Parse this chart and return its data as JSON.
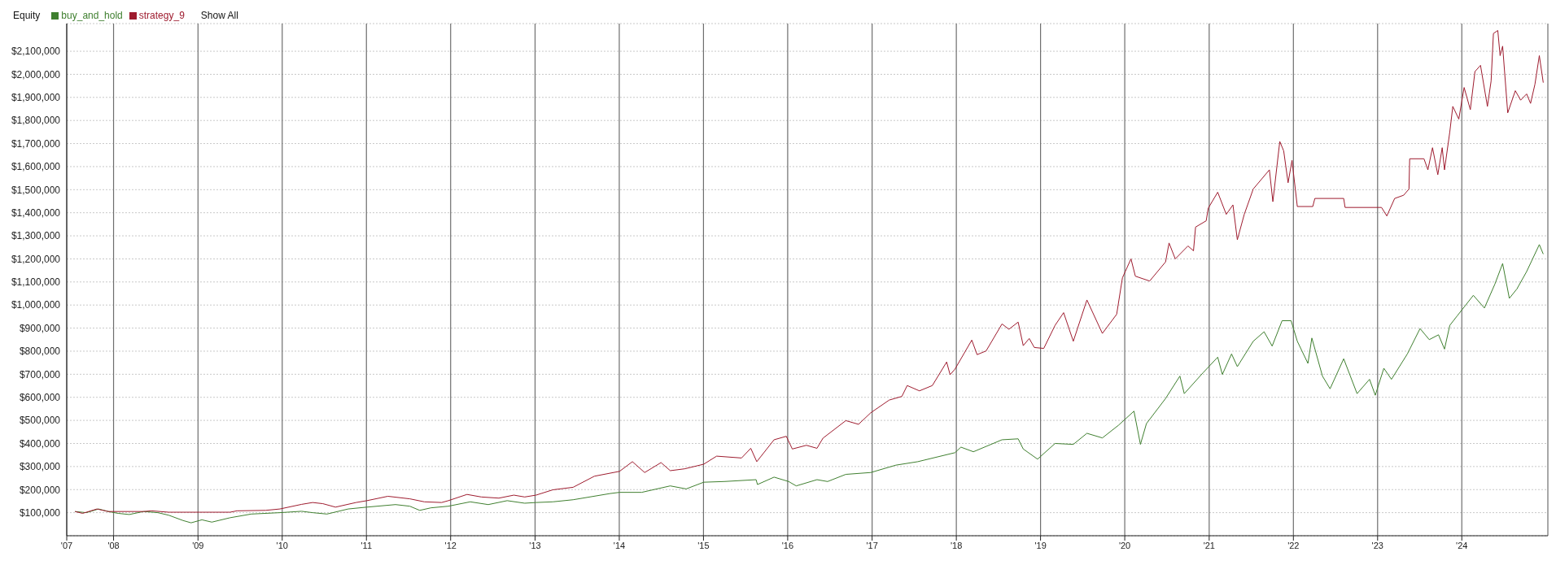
{
  "chart_data": {
    "type": "line",
    "title": "Equity",
    "legend": "top left",
    "grid": true,
    "marker": "none",
    "line_style": "solid",
    "annotations": [
      "Show All"
    ],
    "xlim": [
      "2007-06-12",
      "2025-01-08"
    ],
    "xticks": [
      {
        "value": "2007-06-12",
        "label": "'07"
      },
      {
        "value": "2008-01-01",
        "label": "'08"
      },
      {
        "value": "2009-01-01",
        "label": "'09"
      },
      {
        "value": "2010-01-01",
        "label": "'10"
      },
      {
        "value": "2011-01-01",
        "label": "'11"
      },
      {
        "value": "2012-01-01",
        "label": "'12"
      },
      {
        "value": "2013-01-01",
        "label": "'13"
      },
      {
        "value": "2014-01-01",
        "label": "'14"
      },
      {
        "value": "2015-01-01",
        "label": "'15"
      },
      {
        "value": "2016-01-01",
        "label": "'16"
      },
      {
        "value": "2017-01-01",
        "label": "'17"
      },
      {
        "value": "2018-01-01",
        "label": "'18"
      },
      {
        "value": "2019-01-01",
        "label": "'19"
      },
      {
        "value": "2020-01-01",
        "label": "'20"
      },
      {
        "value": "2021-01-01",
        "label": "'21"
      },
      {
        "value": "2022-01-01",
        "label": "'22"
      },
      {
        "value": "2023-01-01",
        "label": "'23"
      },
      {
        "value": "2024-01-01",
        "label": "'24"
      }
    ],
    "ylim": [
      0,
      2220000
    ],
    "yticks": [
      {
        "value": 100000,
        "label": "$100,000"
      },
      {
        "value": 200000,
        "label": "$200,000"
      },
      {
        "value": 300000,
        "label": "$300,000"
      },
      {
        "value": 400000,
        "label": "$400,000"
      },
      {
        "value": 500000,
        "label": "$500,000"
      },
      {
        "value": 600000,
        "label": "$600,000"
      },
      {
        "value": 700000,
        "label": "$700,000"
      },
      {
        "value": 800000,
        "label": "$800,000"
      },
      {
        "value": 900000,
        "label": "$900,000"
      },
      {
        "value": 1000000,
        "label": "$1,000,000"
      },
      {
        "value": 1100000,
        "label": "$1,100,000"
      },
      {
        "value": 1200000,
        "label": "$1,200,000"
      },
      {
        "value": 1300000,
        "label": "$1,300,000"
      },
      {
        "value": 1400000,
        "label": "$1,400,000"
      },
      {
        "value": 1500000,
        "label": "$1,500,000"
      },
      {
        "value": 1600000,
        "label": "$1,600,000"
      },
      {
        "value": 1700000,
        "label": "$1,700,000"
      },
      {
        "value": 1800000,
        "label": "$1,800,000"
      },
      {
        "value": 1900000,
        "label": "$1,900,000"
      },
      {
        "value": 2000000,
        "label": "$2,000,000"
      },
      {
        "value": 2100000,
        "label": "$2,100,000"
      }
    ],
    "series": [
      {
        "name": "buy_and_hold",
        "color": "#3f7f2f",
        "x": [
          "2007-07-18",
          "2007-09-05",
          "2007-10-28",
          "2007-12-09",
          "2008-01-21",
          "2008-03-09",
          "2008-05-10",
          "2008-07-11",
          "2008-08-27",
          "2008-10-28",
          "2008-12-02",
          "2009-01-18",
          "2009-03-02",
          "2009-05-20",
          "2009-08-20",
          "2009-12-22",
          "2010-03-26",
          "2010-05-13",
          "2010-07-14",
          "2010-10-14",
          "2011-01-03",
          "2011-05-07",
          "2011-07-08",
          "2011-08-20",
          "2011-10-08",
          "2011-12-22",
          "2012-03-26",
          "2012-06-12",
          "2012-09-02",
          "2012-11-17",
          "2013-01-05",
          "2013-03-19",
          "2013-06-15",
          "2013-11-23",
          "2014-01-02",
          "2014-04-08",
          "2014-08-10",
          "2014-10-18",
          "2015-01-02",
          "2015-04-01",
          "2015-08-17",
          "2015-08-23",
          "2015-11-03",
          "2016-01-05",
          "2016-02-07",
          "2016-05-07",
          "2016-06-22",
          "2016-09-09",
          "2016-12-26",
          "2017-04-14",
          "2017-07-18",
          "2017-12-26",
          "2018-01-21",
          "2018-03-16",
          "2018-07-18",
          "2018-09-26",
          "2018-10-18",
          "2018-12-19",
          "2019-03-05",
          "2019-05-23",
          "2019-07-21",
          "2019-09-26",
          "2019-12-05",
          "2020-02-10",
          "2020-03-09",
          "2020-04-04",
          "2020-06-26",
          "2020-08-27",
          "2020-09-15",
          "2020-12-05",
          "2021-02-07",
          "2021-02-27",
          "2021-04-08",
          "2021-05-03",
          "2021-07-11",
          "2021-08-27",
          "2021-10-01",
          "2021-11-13",
          "2021-12-22",
          "2022-01-18",
          "2022-03-05",
          "2022-03-22",
          "2022-05-07",
          "2022-06-09",
          "2022-08-07",
          "2022-10-04",
          "2022-11-27",
          "2022-12-22",
          "2023-01-28",
          "2023-03-02",
          "2023-05-10",
          "2023-07-04",
          "2023-08-13",
          "2023-09-22",
          "2023-10-18",
          "2023-11-10",
          "2023-12-12",
          "2024-02-20",
          "2024-04-08",
          "2024-05-23",
          "2024-06-26",
          "2024-07-25",
          "2024-08-27",
          "2024-10-08",
          "2024-12-02",
          "2024-12-19"
        ],
        "values": [
          105000,
          100000,
          116000,
          105000,
          97000,
          92000,
          105000,
          100000,
          89000,
          66000,
          56000,
          69000,
          59000,
          78000,
          94000,
          100000,
          106000,
          100000,
          94000,
          116000,
          124000,
          135000,
          128000,
          110000,
          121000,
          128000,
          147000,
          135000,
          152000,
          141000,
          144000,
          147000,
          156000,
          183000,
          188000,
          188000,
          216000,
          203000,
          232000,
          235000,
          243000,
          222000,
          254000,
          235000,
          216000,
          243000,
          235000,
          266000,
          274000,
          306000,
          321000,
          360000,
          384000,
          364000,
          416000,
          420000,
          376000,
          332000,
          400000,
          396000,
          444000,
          424000,
          479000,
          540000,
          396000,
          486000,
          595000,
          692000,
          616000,
          706000,
          774000,
          699000,
          788000,
          733000,
          843000,
          884000,
          822000,
          932000,
          932000,
          843000,
          747000,
          857000,
          692000,
          637000,
          767000,
          616000,
          678000,
          609000,
          726000,
          678000,
          788000,
          898000,
          850000,
          871000,
          809000,
          912000,
          953000,
          1042000,
          987000,
          1090000,
          1180000,
          1029000,
          1070000,
          1145000,
          1262000,
          1221000
        ]
      },
      {
        "name": "strategy_9",
        "color": "#9e1b2e",
        "x": [
          "2007-07-18",
          "2007-08-20",
          "2007-10-21",
          "2007-12-09",
          "2008-01-02",
          "2008-05-10",
          "2008-06-12",
          "2008-08-27",
          "2009-05-20",
          "2009-06-19",
          "2009-10-21",
          "2009-12-22",
          "2010-03-26",
          "2010-05-13",
          "2010-06-26",
          "2010-08-20",
          "2010-11-17",
          "2011-01-03",
          "2011-04-04",
          "2011-07-08",
          "2011-09-09",
          "2011-11-23",
          "2011-12-22",
          "2012-03-12",
          "2012-05-13",
          "2012-07-28",
          "2012-10-01",
          "2012-11-17",
          "2013-01-05",
          "2013-03-19",
          "2013-06-15",
          "2013-09-15",
          "2014-01-02",
          "2014-02-27",
          "2014-04-21",
          "2014-07-01",
          "2014-08-10",
          "2014-10-11",
          "2015-01-02",
          "2015-02-27",
          "2015-06-15",
          "2015-07-25",
          "2015-08-20",
          "2015-11-03",
          "2015-12-26",
          "2016-01-21",
          "2016-03-22",
          "2016-05-07",
          "2016-06-02",
          "2016-09-09",
          "2016-11-03",
          "2016-12-26",
          "2017-03-16",
          "2017-05-10",
          "2017-06-02",
          "2017-07-25",
          "2017-09-19",
          "2017-11-20",
          "2017-12-05",
          "2017-12-26",
          "2018-03-09",
          "2018-04-01",
          "2018-05-10",
          "2018-07-18",
          "2018-08-17",
          "2018-09-26",
          "2018-10-18",
          "2018-11-13",
          "2018-12-05",
          "2019-01-15",
          "2019-03-05",
          "2019-04-11",
          "2019-05-23",
          "2019-07-21",
          "2019-09-26",
          "2019-11-27",
          "2019-12-22",
          "2020-01-28",
          "2020-02-16",
          "2020-04-18",
          "2020-06-26",
          "2020-07-11",
          "2020-08-07",
          "2020-10-01",
          "2020-10-25",
          "2020-11-03",
          "2020-12-19",
          "2020-12-28",
          "2021-02-07",
          "2021-03-16",
          "2021-04-14",
          "2021-05-03",
          "2021-06-02",
          "2021-07-11",
          "2021-09-19",
          "2021-10-04",
          "2021-11-03",
          "2021-11-20",
          "2021-12-09",
          "2021-12-26",
          "2022-01-18",
          "2022-03-26",
          "2022-04-04",
          "2022-08-07",
          "2022-08-13",
          "2023-01-18",
          "2023-02-10",
          "2023-03-16",
          "2023-04-24",
          "2023-05-17",
          "2023-05-20",
          "2023-07-21",
          "2023-08-07",
          "2023-08-27",
          "2023-09-19",
          "2023-10-08",
          "2023-10-18",
          "2023-11-10",
          "2023-11-23",
          "2023-12-19",
          "2024-01-11",
          "2024-02-07",
          "2024-02-27",
          "2024-03-22",
          "2024-04-21",
          "2024-05-07",
          "2024-05-17",
          "2024-06-05",
          "2024-06-15",
          "2024-06-26",
          "2024-07-18",
          "2024-08-20",
          "2024-09-12",
          "2024-10-08",
          "2024-10-25",
          "2024-11-13",
          "2024-12-02",
          "2024-12-19"
        ],
        "values": [
          105000,
          97000,
          116000,
          105000,
          105000,
          105000,
          108000,
          102000,
          102000,
          108000,
          110000,
          116000,
          136000,
          144000,
          139000,
          124000,
          144000,
          152000,
          171000,
          160000,
          147000,
          144000,
          152000,
          179000,
          168000,
          163000,
          176000,
          168000,
          176000,
          199000,
          210000,
          258000,
          279000,
          321000,
          274000,
          317000,
          282000,
          290000,
          310000,
          345000,
          337000,
          379000,
          321000,
          416000,
          431000,
          376000,
          392000,
          379000,
          423000,
          499000,
          483000,
          533000,
          588000,
          604000,
          651000,
          628000,
          651000,
          753000,
          698000,
          722000,
          848000,
          785000,
          801000,
          918000,
          895000,
          926000,
          824000,
          855000,
          816000,
          812000,
          912000,
          967000,
          843000,
          1022000,
          877000,
          960000,
          1118000,
          1200000,
          1125000,
          1104000,
          1187000,
          1269000,
          1200000,
          1256000,
          1235000,
          1338000,
          1365000,
          1420000,
          1489000,
          1393000,
          1434000,
          1283000,
          1393000,
          1503000,
          1586000,
          1448000,
          1709000,
          1668000,
          1530000,
          1627000,
          1427000,
          1427000,
          1462000,
          1462000,
          1423000,
          1423000,
          1386000,
          1462000,
          1476000,
          1503000,
          1634000,
          1634000,
          1586000,
          1682000,
          1565000,
          1682000,
          1586000,
          1751000,
          1861000,
          1806000,
          1943000,
          1847000,
          2012000,
          2039000,
          1861000,
          1971000,
          2177000,
          2190000,
          2081000,
          2122000,
          1833000,
          1929000,
          1888000,
          1915000,
          1874000,
          1957000,
          2081000,
          1964000
        ]
      }
    ]
  }
}
